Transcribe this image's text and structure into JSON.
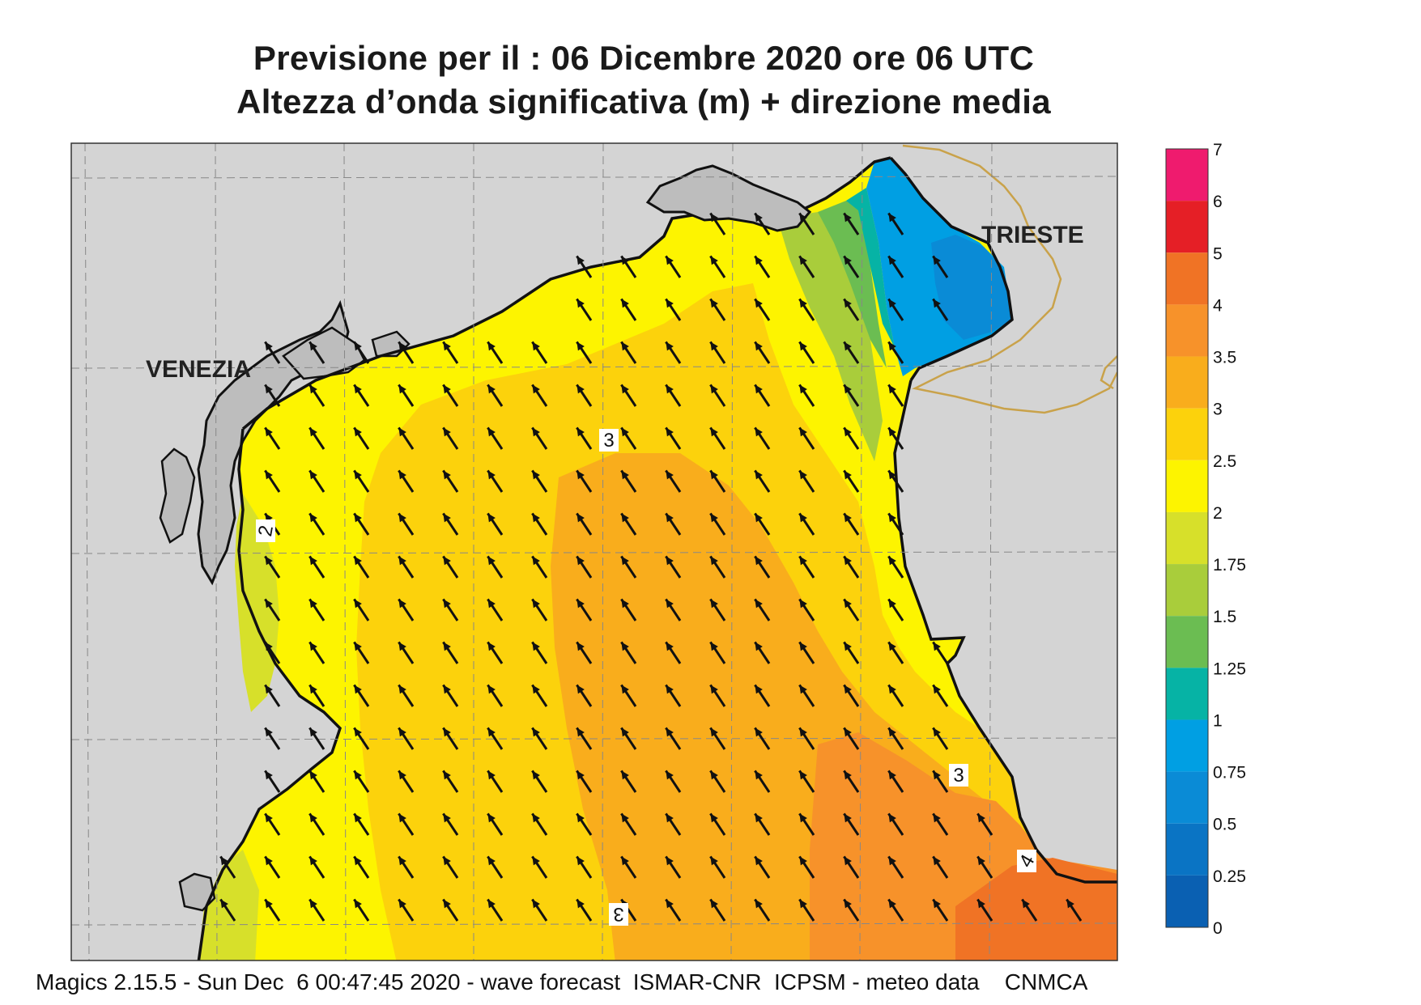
{
  "title": {
    "line1": "Previsione per il  :  06 Dicembre  2020   ore 06 UTC",
    "line2": "Altezza d’onda significativa (m) + direzione media"
  },
  "map": {
    "places": [
      {
        "id": "venezia",
        "label": "VENEZIA"
      },
      {
        "id": "trieste",
        "label": "TRIESTE"
      }
    ],
    "contour_labels": [
      "3",
      "2",
      "3",
      "4",
      "3"
    ],
    "arrow_direction": "north-west"
  },
  "color_scale": {
    "labels": [
      "7",
      "6",
      "5",
      "4",
      "3.5",
      "3",
      "2.5",
      "2",
      "1.75",
      "1.5",
      "1.25",
      "1",
      "0.75",
      "0.5",
      "0.25",
      "0"
    ],
    "colors": [
      "#ef1b6e",
      "#e51f26",
      "#f07325",
      "#f7922a",
      "#f9ad1c",
      "#fcd20c",
      "#fdf400",
      "#d7e02a",
      "#a9cd3b",
      "#6bbd52",
      "#06b3a5",
      "#009fe3",
      "#0a8bd6",
      "#0a74c4",
      "#0a60b2"
    ]
  },
  "footer": "Magics 2.15.5 - Sun Dec  6 00:47:45 2020 - wave forecast  ISMAR-CNR  ICPSM - meteo data    CNMCA"
}
